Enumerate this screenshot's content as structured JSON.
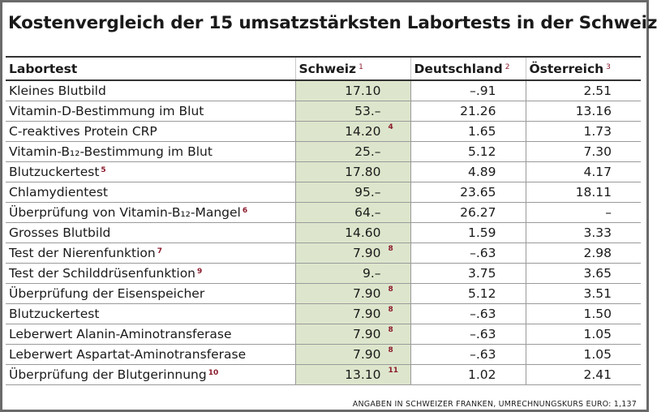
{
  "title": "Kostenvergleich der 15 umsatzstärksten Labortests in der Schweiz",
  "columns": [
    {
      "label": "Labortest",
      "footnote": ""
    },
    {
      "label": "Schweiz",
      "footnote": "1"
    },
    {
      "label": "Deutschland",
      "footnote": "2"
    },
    {
      "label": "Österreich",
      "footnote": "3"
    }
  ],
  "rows": [
    {
      "test": "Kleines Blutbild",
      "test_fn": "",
      "ch": "17.10",
      "ch_fn": "",
      "de": "–.91",
      "at": "2.51"
    },
    {
      "test": "Vitamin-D-Bestimmung im Blut",
      "test_fn": "",
      "ch": "53.–",
      "ch_fn": "",
      "de": "21.26",
      "at": "13.16"
    },
    {
      "test": "C-reaktives Protein CRP",
      "test_fn": "",
      "ch": "14.20",
      "ch_fn": "4",
      "de": "1.65",
      "at": "1.73"
    },
    {
      "test": "Vitamin-B₁₂-Bestimmung im Blut",
      "test_fn": "",
      "ch": "25.–",
      "ch_fn": "",
      "de": "5.12",
      "at": "7.30"
    },
    {
      "test": "Blutzuckertest",
      "test_fn": "5",
      "ch": "17.80",
      "ch_fn": "",
      "de": "4.89",
      "at": "4.17"
    },
    {
      "test": "Chlamydientest",
      "test_fn": "",
      "ch": "95.–",
      "ch_fn": "",
      "de": "23.65",
      "at": "18.11"
    },
    {
      "test": "Überprüfung von Vitamin-B₁₂-Mangel",
      "test_fn": "6",
      "ch": "64.–",
      "ch_fn": "",
      "de": "26.27",
      "at": "–"
    },
    {
      "test": "Grosses Blutbild",
      "test_fn": "",
      "ch": "14.60",
      "ch_fn": "",
      "de": "1.59",
      "at": "3.33"
    },
    {
      "test": "Test der Nierenfunktion",
      "test_fn": "7",
      "ch": "7.90",
      "ch_fn": "8",
      "de": "–.63",
      "at": "2.98"
    },
    {
      "test": "Test der Schilddrüsenfunktion",
      "test_fn": "9",
      "ch": "9.–",
      "ch_fn": "",
      "de": "3.75",
      "at": "3.65"
    },
    {
      "test": "Überprüfung der Eisenspeicher",
      "test_fn": "",
      "ch": "7.90",
      "ch_fn": "8",
      "de": "5.12",
      "at": "3.51"
    },
    {
      "test": "Blutzuckertest",
      "test_fn": "",
      "ch": "7.90",
      "ch_fn": "8",
      "de": "–.63",
      "at": "1.50"
    },
    {
      "test": "Leberwert Alanin-Aminotransferase",
      "test_fn": "",
      "ch": "7.90",
      "ch_fn": "8",
      "de": "–.63",
      "at": "1.05"
    },
    {
      "test": "Leberwert Aspartat-Aminotransferase",
      "test_fn": "",
      "ch": "7.90",
      "ch_fn": "8",
      "de": "–.63",
      "at": "1.05"
    },
    {
      "test": "Überprüfung der Blutgerinnung",
      "test_fn": "10",
      "ch": "13.10",
      "ch_fn": "11",
      "de": "1.02",
      "at": "2.41"
    }
  ],
  "footer": "ANGABEN IN SCHWEIZER FRANKEN, UMRECHNUNGSKURS EURO: 1,137",
  "colors": {
    "switzerland_column_bg": "#dde6cc",
    "footnote_color": "#8b1a2b",
    "frame_border": "#6a6a6a"
  }
}
